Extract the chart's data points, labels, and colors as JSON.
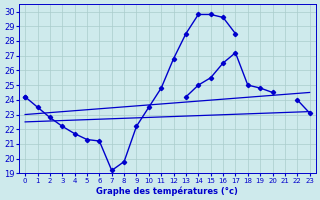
{
  "xlabel": "Graphe des températures (°c)",
  "xlim": [
    -0.5,
    23.5
  ],
  "ylim": [
    19,
    30.5
  ],
  "yticks": [
    19,
    20,
    21,
    22,
    23,
    24,
    25,
    26,
    27,
    28,
    29,
    30
  ],
  "xticks": [
    0,
    1,
    2,
    3,
    4,
    5,
    6,
    7,
    8,
    9,
    10,
    11,
    12,
    13,
    14,
    15,
    16,
    17,
    18,
    19,
    20,
    21,
    22,
    23
  ],
  "bg_color": "#ceeaec",
  "line_color": "#0000cc",
  "grid_color": "#aacccc",
  "curves": [
    {
      "x": [
        0,
        1,
        2,
        3,
        4,
        5,
        6,
        7,
        8,
        9,
        10,
        11,
        12,
        13,
        14,
        15,
        16,
        17,
        18,
        19,
        20,
        21,
        22,
        23
      ],
      "y": [
        24.2,
        23.5,
        22.8,
        22.2,
        21.7,
        21.3,
        21.2,
        19.2,
        19.8,
        22.2,
        23.5,
        24.8,
        26.8,
        28.5,
        29.8,
        29.8,
        29.6,
        28.5,
        null,
        null,
        null,
        null,
        null,
        null
      ]
    },
    {
      "x": [
        0,
        1,
        2,
        3,
        4,
        5,
        6,
        7,
        8,
        9,
        10,
        11,
        12,
        13,
        14,
        15,
        16,
        17,
        18,
        19,
        20,
        21,
        22,
        23
      ],
      "y": [
        24.2,
        null,
        null,
        null,
        null,
        null,
        null,
        null,
        null,
        null,
        null,
        null,
        null,
        24.2,
        25.0,
        25.5,
        26.5,
        27.2,
        25.0,
        24.8,
        24.5,
        null,
        24.0,
        23.1
      ]
    },
    {
      "x": [
        0,
        23
      ],
      "y": [
        23.0,
        24.5
      ]
    },
    {
      "x": [
        0,
        23
      ],
      "y": [
        22.5,
        23.2
      ]
    }
  ]
}
